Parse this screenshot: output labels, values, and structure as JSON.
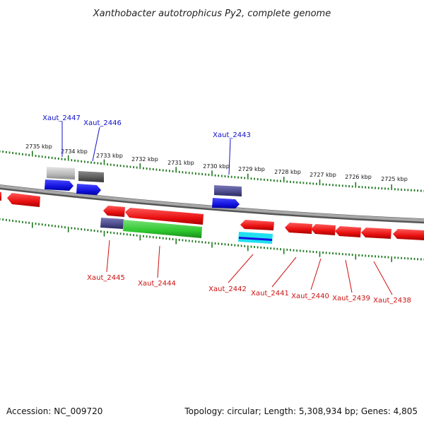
{
  "title": "Xanthobacter autotrophicus Py2, complete genome",
  "colors": {
    "backbone": "#8a8a8a",
    "tick": "#1f7a1f",
    "forward_label": "#1010c8",
    "reverse_label": "#cc1010",
    "red": "#e81010",
    "blue": "#1414e0",
    "green": "#2ec82e",
    "navy": "#4a4a8c",
    "cyan": "#20e0f0",
    "gray_light": "#b8b8b8",
    "gray_dark": "#5a5a5a"
  },
  "kbp_labels": [
    "2735 kbp",
    "2734 kbp",
    "2733 kbp",
    "2732 kbp",
    "2731 kbp",
    "2730 kbp",
    "2729 kbp",
    "2728 kbp",
    "2727 kbp",
    "2726 kbp",
    "2725 kbp"
  ],
  "gene_labels": {
    "forward": [
      "Xaut_2447",
      "Xaut_2446",
      "Xaut_2443"
    ],
    "reverse": [
      "Xaut_2445",
      "Xaut_2444",
      "Xaut_2442",
      "Xaut_2441",
      "Xaut_2440",
      "Xaut_2439",
      "Xaut_2438"
    ]
  },
  "footer": {
    "accession": "Accession: NC_009720",
    "info": "Topology: circular; Length: 5,308,934 bp; Genes: 4,805"
  }
}
